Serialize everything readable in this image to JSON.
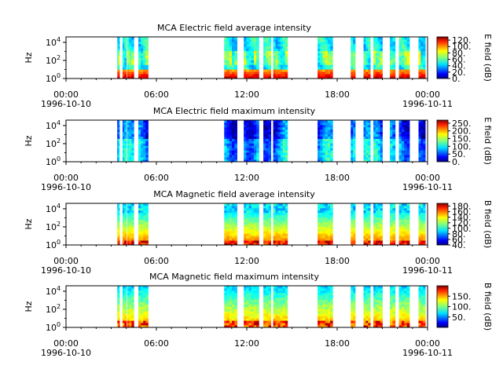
{
  "colors": {
    "background": "#ffffff",
    "colormap": "jet",
    "jet_stops": [
      "#000080",
      "#0000ff",
      "#0080ff",
      "#00ffff",
      "#80ff80",
      "#ffff00",
      "#ff8000",
      "#ff0000",
      "#800000"
    ]
  },
  "chart_data": [
    {
      "type": "heatmap",
      "title": "MCA  Electric field average intensity",
      "ylabel": "Hz",
      "y_scale": "log",
      "y_ticks": [
        {
          "base": "10",
          "exp": "0"
        },
        {
          "base": "10",
          "exp": "2"
        },
        {
          "base": "10",
          "exp": "4"
        }
      ],
      "x_ticks": [
        "00:00",
        "06:00",
        "12:00",
        "18:00",
        "00:00"
      ],
      "x_dates": [
        "1996-10-10",
        "1996-10-11"
      ],
      "cbar_label": "E field (dB)",
      "cbar_ticks": [
        "0.",
        "20.",
        "40.",
        "60.",
        "80.",
        "100.",
        "120."
      ],
      "cbar_range": [
        0,
        130
      ],
      "style": "average-electric"
    },
    {
      "type": "heatmap",
      "title": "MCA  Electric field maximum intensity",
      "ylabel": "Hz",
      "y_scale": "log",
      "y_ticks": [
        {
          "base": "10",
          "exp": "0"
        },
        {
          "base": "10",
          "exp": "2"
        },
        {
          "base": "10",
          "exp": "4"
        }
      ],
      "x_ticks": [
        "00:00",
        "06:00",
        "12:00",
        "18:00",
        "00:00"
      ],
      "x_dates": [
        "1996-10-10",
        "1996-10-11"
      ],
      "cbar_label": "E field (dB)",
      "cbar_ticks": [
        "0.",
        "50.",
        "100.",
        "150.",
        "200.",
        "250."
      ],
      "cbar_range": [
        0,
        270
      ],
      "style": "maximum-electric"
    },
    {
      "type": "heatmap",
      "title": "MCA  Magnetic field average intensity",
      "ylabel": "Hz",
      "y_scale": "log",
      "y_ticks": [
        {
          "base": "10",
          "exp": "0"
        },
        {
          "base": "10",
          "exp": "2"
        },
        {
          "base": "10",
          "exp": "4"
        }
      ],
      "x_ticks": [
        "00:00",
        "06:00",
        "12:00",
        "18:00",
        "00:00"
      ],
      "x_dates": [
        "1996-10-10",
        "1996-10-11"
      ],
      "cbar_label": "B field (dB)",
      "cbar_ticks": [
        "40.",
        "60.",
        "80.",
        "100.",
        "120.",
        "140.",
        "160.",
        "180."
      ],
      "cbar_range": [
        40,
        190
      ],
      "style": "average-magnetic"
    },
    {
      "type": "heatmap",
      "title": "MCA  Magnetic field maximum intensity",
      "ylabel": "Hz",
      "y_scale": "log",
      "y_ticks": [
        {
          "base": "10",
          "exp": "0"
        },
        {
          "base": "10",
          "exp": "2"
        },
        {
          "base": "10",
          "exp": "4"
        }
      ],
      "x_ticks": [
        "00:00",
        "06:00",
        "12:00",
        "18:00",
        "00:00"
      ],
      "x_dates": [
        "1996-10-10",
        "1996-10-11"
      ],
      "cbar_label": "B field (dB)",
      "cbar_ticks": [
        "50.",
        "100.",
        "150."
      ],
      "cbar_range": [
        0,
        200
      ],
      "style": "maximum-magnetic"
    }
  ],
  "data_segments_hours": [
    [
      3.4,
      3.55
    ],
    [
      3.75,
      4.0
    ],
    [
      4.05,
      4.5
    ],
    [
      4.8,
      5.45
    ],
    [
      10.5,
      11.35
    ],
    [
      11.8,
      12.8
    ],
    [
      13.1,
      13.6
    ],
    [
      13.75,
      14.7
    ],
    [
      16.7,
      17.7
    ],
    [
      18.9,
      19.2
    ],
    [
      19.75,
      20.2
    ],
    [
      20.4,
      21.0
    ],
    [
      21.5,
      21.85
    ],
    [
      22.1,
      22.8
    ],
    [
      23.4,
      23.85
    ]
  ]
}
